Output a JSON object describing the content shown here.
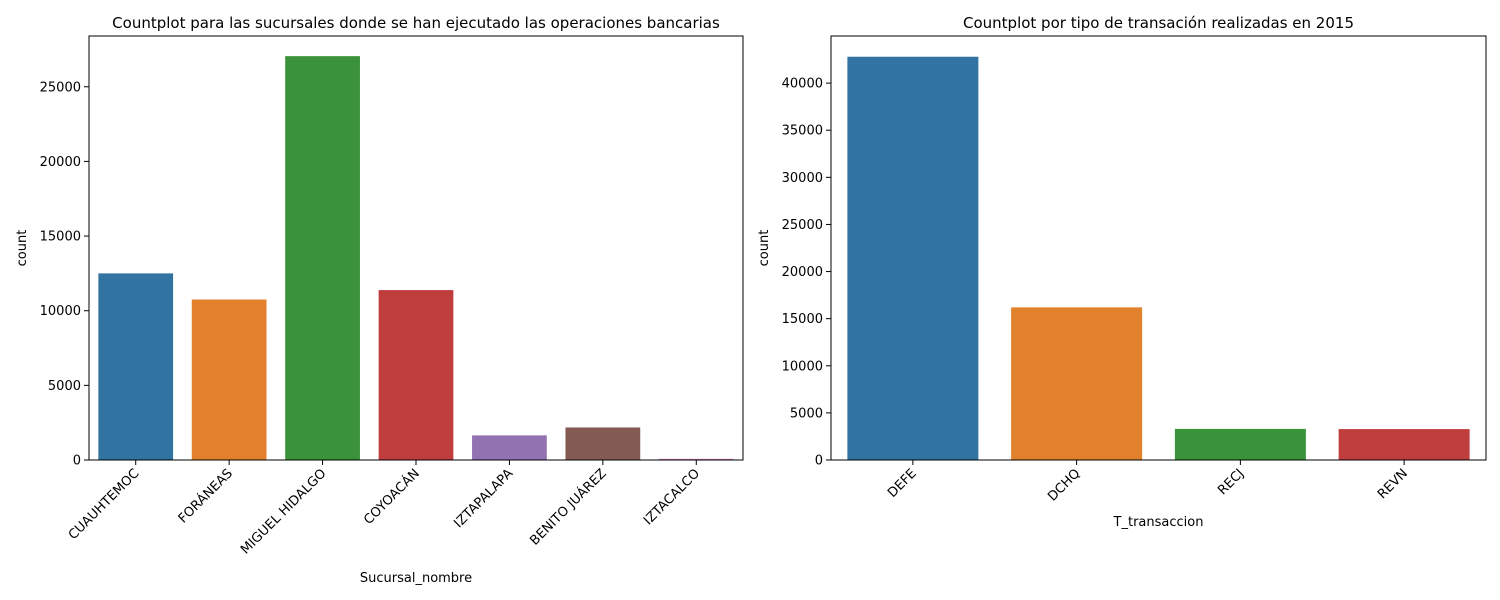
{
  "chart_data": [
    {
      "type": "bar",
      "title": "Countplot para las sucursales donde se han ejecutado las operaciones bancarias",
      "xlabel": "Sucursal_nombre",
      "ylabel": "count",
      "categories": [
        "CUAUHTEMOC",
        "FORÁNEAS",
        "MIGUEL HIDALGO",
        "COYOACÁN",
        "IZTAPALAPA",
        "BENITO JUÁREZ",
        "IZTACALCO"
      ],
      "values": [
        12500,
        10750,
        27050,
        11380,
        1650,
        2180,
        80
      ],
      "colors": [
        "#3274a1",
        "#e1812c",
        "#3a923a",
        "#c03d3e",
        "#9372b2",
        "#845b53",
        "#d684bd"
      ],
      "yticks": [
        0,
        5000,
        10000,
        15000,
        20000,
        25000
      ],
      "ylim": [
        0,
        28400
      ],
      "grid": false,
      "x_tick_rotation": 45
    },
    {
      "type": "bar",
      "title": "Countplot por tipo de transación realizadas en 2015",
      "xlabel": "T_transaccion",
      "ylabel": "count",
      "categories": [
        "DEFE",
        "DCHQ",
        "RECJ",
        "REVN"
      ],
      "values": [
        42800,
        16200,
        3300,
        3280
      ],
      "colors": [
        "#3274a1",
        "#e1812c",
        "#3a923a",
        "#c03d3e"
      ],
      "yticks": [
        0,
        5000,
        10000,
        15000,
        20000,
        25000,
        30000,
        35000,
        40000
      ],
      "ylim": [
        0,
        45000
      ],
      "grid": false,
      "x_tick_rotation": 45
    }
  ]
}
